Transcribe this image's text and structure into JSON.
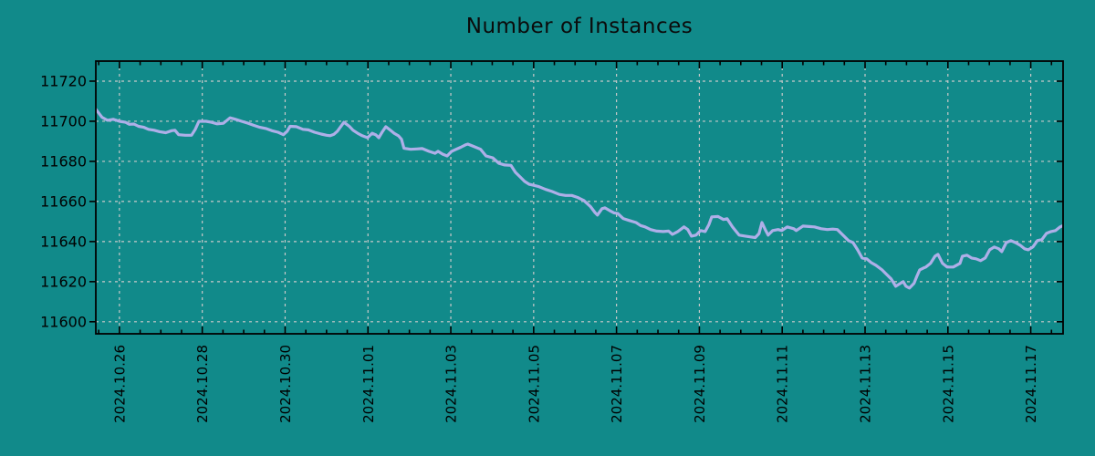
{
  "page": {
    "background_color": "#118a8a"
  },
  "chart_data": {
    "type": "line",
    "title": "Number of Instances",
    "xlabel": "",
    "ylabel": "",
    "grid": true,
    "legend_position": "none",
    "x_tick_labels": [
      "2024.10.26",
      "2024.10.28",
      "2024.10.30",
      "2024.11.01",
      "2024.11.03",
      "2024.11.05",
      "2024.11.07",
      "2024.11.09",
      "2024.11.11",
      "2024.11.13",
      "2024.11.15",
      "2024.11.17"
    ],
    "x_tick_day_offsets": [
      0,
      2,
      4,
      6,
      8,
      10,
      12,
      14,
      16,
      18,
      20,
      22
    ],
    "x_minor_tick_step_days": 0.5,
    "xlim_days": [
      -0.57,
      22.78
    ],
    "y_ticks": [
      11600,
      11620,
      11640,
      11660,
      11680,
      11700,
      11720
    ],
    "ylim": [
      11594,
      11730
    ],
    "colors": {
      "background": "#118a8a",
      "line": "#aeafe8",
      "grid": "#c9c9c9",
      "axis": "#000000",
      "text": "#000000"
    },
    "series": [
      {
        "name": "Number of Instances",
        "points": [
          [
            -0.57,
            11706
          ],
          [
            -0.42,
            11702
          ],
          [
            -0.29,
            11700.5
          ],
          [
            -0.15,
            11701
          ],
          [
            0,
            11700
          ],
          [
            0.15,
            11699.5
          ],
          [
            0.24,
            11698.5
          ],
          [
            0.35,
            11698.6
          ],
          [
            0.46,
            11697.5
          ],
          [
            0.59,
            11697
          ],
          [
            0.7,
            11696
          ],
          [
            0.84,
            11695.5
          ],
          [
            0.97,
            11694.8
          ],
          [
            1.12,
            11694.3
          ],
          [
            1.26,
            11695.3
          ],
          [
            1.34,
            11695.5
          ],
          [
            1.43,
            11693.3
          ],
          [
            1.59,
            11693
          ],
          [
            1.74,
            11693
          ],
          [
            1.83,
            11696
          ],
          [
            1.92,
            11700
          ],
          [
            2.09,
            11700
          ],
          [
            2.22,
            11699.5
          ],
          [
            2.36,
            11698.7
          ],
          [
            2.51,
            11699
          ],
          [
            2.67,
            11701.7
          ],
          [
            2.8,
            11701
          ],
          [
            2.95,
            11700
          ],
          [
            3.11,
            11699
          ],
          [
            3.24,
            11698
          ],
          [
            3.39,
            11697
          ],
          [
            3.55,
            11696.3
          ],
          [
            3.68,
            11695.3
          ],
          [
            3.83,
            11694.5
          ],
          [
            3.96,
            11693.3
          ],
          [
            4.05,
            11695
          ],
          [
            4.12,
            11697.5
          ],
          [
            4.27,
            11697.3
          ],
          [
            4.43,
            11696
          ],
          [
            4.56,
            11695.7
          ],
          [
            4.71,
            11694.5
          ],
          [
            4.87,
            11693.6
          ],
          [
            5,
            11693
          ],
          [
            5.09,
            11692.8
          ],
          [
            5.18,
            11693.5
          ],
          [
            5.26,
            11695
          ],
          [
            5.42,
            11699.5
          ],
          [
            5.55,
            11697.5
          ],
          [
            5.64,
            11695.5
          ],
          [
            5.75,
            11694
          ],
          [
            5.86,
            11692.8
          ],
          [
            5.99,
            11691.8
          ],
          [
            6.1,
            11694
          ],
          [
            6.19,
            11693.2
          ],
          [
            6.26,
            11691.8
          ],
          [
            6.34,
            11694.5
          ],
          [
            6.43,
            11697.3
          ],
          [
            6.54,
            11695.5
          ],
          [
            6.63,
            11694
          ],
          [
            6.74,
            11692.7
          ],
          [
            6.81,
            11691
          ],
          [
            6.87,
            11686.5
          ],
          [
            7.03,
            11686
          ],
          [
            7.18,
            11686.2
          ],
          [
            7.31,
            11686.4
          ],
          [
            7.47,
            11685
          ],
          [
            7.62,
            11684
          ],
          [
            7.69,
            11685
          ],
          [
            7.8,
            11683.6
          ],
          [
            7.91,
            11682.7
          ],
          [
            8.02,
            11685
          ],
          [
            8.13,
            11686
          ],
          [
            8.24,
            11687
          ],
          [
            8.35,
            11688.2
          ],
          [
            8.41,
            11688.6
          ],
          [
            8.57,
            11687.3
          ],
          [
            8.72,
            11686
          ],
          [
            8.85,
            11682.7
          ],
          [
            9.01,
            11681.8
          ],
          [
            9.16,
            11679
          ],
          [
            9.3,
            11678.2
          ],
          [
            9.45,
            11678
          ],
          [
            9.56,
            11674.5
          ],
          [
            9.67,
            11672.3
          ],
          [
            9.78,
            11670
          ],
          [
            9.89,
            11668.6
          ],
          [
            9.98,
            11668.2
          ],
          [
            10.11,
            11667.5
          ],
          [
            10.29,
            11666
          ],
          [
            10.44,
            11665
          ],
          [
            10.62,
            11663.5
          ],
          [
            10.77,
            11663
          ],
          [
            10.92,
            11663
          ],
          [
            11.06,
            11662
          ],
          [
            11.21,
            11660.5
          ],
          [
            11.37,
            11657.5
          ],
          [
            11.48,
            11654.5
          ],
          [
            11.54,
            11653.2
          ],
          [
            11.65,
            11656.4
          ],
          [
            11.72,
            11656.8
          ],
          [
            11.83,
            11655.5
          ],
          [
            11.94,
            11654.3
          ],
          [
            12.03,
            11654
          ],
          [
            12.16,
            11651.5
          ],
          [
            12.31,
            11650.5
          ],
          [
            12.47,
            11649.5
          ],
          [
            12.58,
            11648
          ],
          [
            12.69,
            11647.3
          ],
          [
            12.82,
            11646
          ],
          [
            12.97,
            11645.2
          ],
          [
            13.13,
            11645
          ],
          [
            13.26,
            11645.2
          ],
          [
            13.35,
            11643.6
          ],
          [
            13.48,
            11645
          ],
          [
            13.63,
            11647.3
          ],
          [
            13.72,
            11646
          ],
          [
            13.81,
            11642.7
          ],
          [
            13.92,
            11643.2
          ],
          [
            14.03,
            11645.5
          ],
          [
            14.14,
            11645
          ],
          [
            14.23,
            11648.5
          ],
          [
            14.3,
            11652.3
          ],
          [
            14.45,
            11652.5
          ],
          [
            14.58,
            11651
          ],
          [
            14.67,
            11651.4
          ],
          [
            14.8,
            11647.3
          ],
          [
            14.96,
            11643.2
          ],
          [
            15.11,
            11642.7
          ],
          [
            15.24,
            11642.3
          ],
          [
            15.35,
            11642
          ],
          [
            15.44,
            11644
          ],
          [
            15.51,
            11649.5
          ],
          [
            15.59,
            11646
          ],
          [
            15.66,
            11643.2
          ],
          [
            15.77,
            11645.5
          ],
          [
            15.9,
            11646
          ],
          [
            15.99,
            11645.5
          ],
          [
            16.12,
            11647.3
          ],
          [
            16.28,
            11646.4
          ],
          [
            16.34,
            11645.5
          ],
          [
            16.5,
            11647.7
          ],
          [
            16.65,
            11647.5
          ],
          [
            16.78,
            11647.3
          ],
          [
            16.94,
            11646.4
          ],
          [
            17.09,
            11646
          ],
          [
            17.22,
            11646.2
          ],
          [
            17.33,
            11646
          ],
          [
            17.49,
            11642.7
          ],
          [
            17.6,
            11640.5
          ],
          [
            17.71,
            11639.5
          ],
          [
            17.82,
            11635.9
          ],
          [
            17.93,
            11631.8
          ],
          [
            18.04,
            11631.4
          ],
          [
            18.15,
            11629.5
          ],
          [
            18.26,
            11628.2
          ],
          [
            18.41,
            11625.9
          ],
          [
            18.52,
            11623.6
          ],
          [
            18.63,
            11621.4
          ],
          [
            18.74,
            11617.7
          ],
          [
            18.85,
            11619.1
          ],
          [
            18.92,
            11620
          ],
          [
            18.99,
            11617.7
          ],
          [
            19.07,
            11616.8
          ],
          [
            19.18,
            11619.1
          ],
          [
            19.25,
            11622.7
          ],
          [
            19.32,
            11625.9
          ],
          [
            19.41,
            11626.8
          ],
          [
            19.47,
            11627.3
          ],
          [
            19.58,
            11629.1
          ],
          [
            19.69,
            11632.7
          ],
          [
            19.76,
            11633.6
          ],
          [
            19.87,
            11629.1
          ],
          [
            19.98,
            11627.3
          ],
          [
            20.13,
            11627.3
          ],
          [
            20.29,
            11629.1
          ],
          [
            20.35,
            11632.7
          ],
          [
            20.46,
            11633.2
          ],
          [
            20.57,
            11631.8
          ],
          [
            20.68,
            11631.4
          ],
          [
            20.79,
            11630.5
          ],
          [
            20.9,
            11631.8
          ],
          [
            21.01,
            11635.9
          ],
          [
            21.12,
            11637.3
          ],
          [
            21.23,
            11636.4
          ],
          [
            21.3,
            11635
          ],
          [
            21.41,
            11639.5
          ],
          [
            21.52,
            11640.5
          ],
          [
            21.63,
            11639.5
          ],
          [
            21.74,
            11638.2
          ],
          [
            21.85,
            11636.4
          ],
          [
            21.94,
            11635.9
          ],
          [
            22.05,
            11637.3
          ],
          [
            22.16,
            11640.5
          ],
          [
            22.27,
            11641
          ],
          [
            22.38,
            11644.1
          ],
          [
            22.49,
            11645
          ],
          [
            22.6,
            11645.5
          ],
          [
            22.71,
            11647.3
          ],
          [
            22.78,
            11648
          ]
        ]
      }
    ]
  }
}
